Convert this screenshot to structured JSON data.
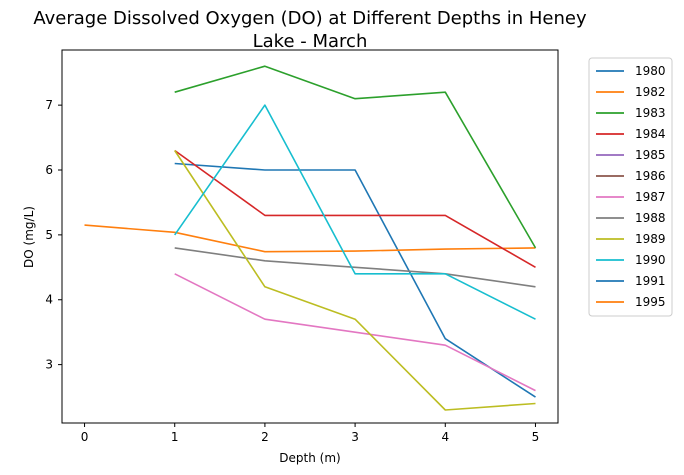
{
  "chart_data": {
    "type": "line",
    "title_line1": "Average Dissolved Oxygen (DO) at Different Depths in Heney",
    "title_line2": "Lake - March",
    "xlabel": "Depth (m)",
    "ylabel": "DO (mg/L)",
    "xlim": [
      -0.25,
      5.25
    ],
    "ylim": [
      2.1,
      7.85
    ],
    "xticks": [
      0,
      1,
      2,
      3,
      4,
      5
    ],
    "yticks": [
      3,
      4,
      5,
      6,
      7
    ],
    "grid": false,
    "legend_position": "outside-right",
    "series": [
      {
        "name": "1980",
        "color": "#1f77b4",
        "x": [
          1,
          2,
          3,
          4,
          5
        ],
        "y": [
          6.1,
          6.0,
          6.0,
          3.4,
          2.5
        ]
      },
      {
        "name": "1982",
        "color": "#ff7f0e",
        "x": [
          0,
          1,
          2,
          3,
          4,
          5
        ],
        "y": [
          5.15,
          5.04,
          4.74,
          4.75,
          4.78,
          4.8
        ]
      },
      {
        "name": "1983",
        "color": "#2ca02c",
        "x": [
          1,
          2,
          3,
          4,
          5
        ],
        "y": [
          7.2,
          7.6,
          7.1,
          7.2,
          4.8
        ]
      },
      {
        "name": "1984",
        "color": "#d62728",
        "x": [
          1,
          2,
          3,
          4,
          5
        ],
        "y": [
          6.3,
          5.3,
          5.3,
          5.3,
          4.5
        ]
      },
      {
        "name": "1985",
        "color": "#9467bd",
        "x": [],
        "y": []
      },
      {
        "name": "1986",
        "color": "#8c564b",
        "x": [],
        "y": []
      },
      {
        "name": "1987",
        "color": "#e377c2",
        "x": [
          1,
          2,
          3,
          4,
          5
        ],
        "y": [
          4.4,
          3.7,
          3.5,
          3.3,
          2.6
        ]
      },
      {
        "name": "1988",
        "color": "#7f7f7f",
        "x": [
          1,
          2,
          3,
          4,
          5
        ],
        "y": [
          4.8,
          4.6,
          4.5,
          4.4,
          4.2
        ]
      },
      {
        "name": "1989",
        "color": "#bcbd22",
        "x": [
          1,
          2,
          3,
          4,
          5
        ],
        "y": [
          6.3,
          4.2,
          3.7,
          2.3,
          2.4
        ]
      },
      {
        "name": "1990",
        "color": "#17becf",
        "x": [
          1,
          2,
          3,
          4,
          5
        ],
        "y": [
          5.0,
          7.0,
          4.4,
          4.4,
          3.7
        ]
      },
      {
        "name": "1991",
        "color": "#1f77b4",
        "x": [],
        "y": []
      },
      {
        "name": "1995",
        "color": "#ff7f0e",
        "x": [],
        "y": []
      }
    ]
  }
}
